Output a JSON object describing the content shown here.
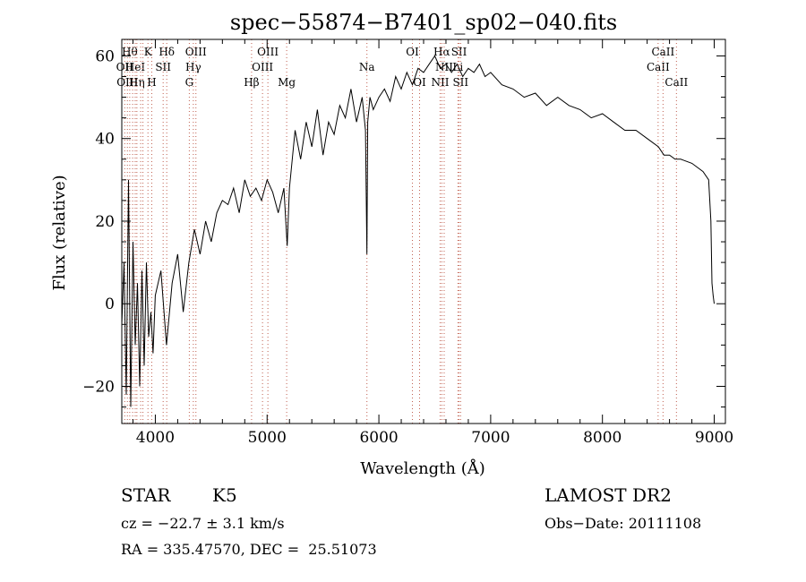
{
  "chart_data": {
    "type": "line",
    "title": "spec−55874−B7401_sp02−040.fits",
    "xlabel": "Wavelength (Å)",
    "ylabel": "Flux (relative)",
    "xlim": [
      3700,
      9100
    ],
    "ylim": [
      -29,
      64
    ],
    "xticks": [
      4000,
      5000,
      6000,
      7000,
      8000,
      9000
    ],
    "yticks": [
      -20,
      0,
      20,
      40,
      60
    ],
    "xtick_labels": [
      "4000",
      "5000",
      "6000",
      "7000",
      "8000",
      "9000"
    ],
    "ytick_labels": [
      "−20",
      "0",
      "20",
      "40",
      "60"
    ],
    "grid": false,
    "series": [
      {
        "x": [
          3700,
          3720,
          3740,
          3760,
          3780,
          3800,
          3820,
          3840,
          3860,
          3880,
          3900,
          3920,
          3940,
          3960,
          3980,
          4000,
          4050,
          4100,
          4150,
          4200,
          4250,
          4300,
          4350,
          4400,
          4450,
          4500,
          4550,
          4600,
          4650,
          4700,
          4750,
          4800,
          4850,
          4900,
          4950,
          5000,
          5050,
          5100,
          5150,
          5180,
          5200,
          5250,
          5300,
          5350,
          5400,
          5450,
          5500,
          5550,
          5600,
          5650,
          5700,
          5750,
          5800,
          5850,
          5880,
          5893,
          5900,
          5920,
          5950,
          6000,
          6050,
          6100,
          6150,
          6200,
          6250,
          6300,
          6350,
          6400,
          6450,
          6500,
          6550,
          6600,
          6650,
          6700,
          6750,
          6800,
          6850,
          6900,
          6950,
          7000,
          7100,
          7200,
          7300,
          7400,
          7500,
          7600,
          7700,
          7800,
          7900,
          8000,
          8100,
          8200,
          8300,
          8400,
          8500,
          8550,
          8600,
          8650,
          8700,
          8800,
          8900,
          8950,
          8970,
          8980,
          8990,
          9000
        ],
        "y": [
          -5,
          10,
          -22,
          30,
          -25,
          15,
          -10,
          5,
          -20,
          8,
          -15,
          10,
          -8,
          -2,
          -12,
          2,
          8,
          -10,
          5,
          12,
          -2,
          10,
          18,
          12,
          20,
          15,
          22,
          25,
          24,
          28,
          22,
          30,
          26,
          28,
          25,
          30,
          27,
          22,
          28,
          14,
          28,
          42,
          35,
          44,
          38,
          47,
          36,
          44,
          41,
          48,
          45,
          52,
          44,
          50,
          42,
          12,
          44,
          50,
          47,
          50,
          52,
          49,
          55,
          52,
          56,
          53,
          57,
          56,
          58,
          60,
          57,
          58,
          56,
          58,
          55,
          57,
          56,
          58,
          55,
          56,
          53,
          52,
          50,
          51,
          48,
          50,
          48,
          47,
          45,
          46,
          44,
          42,
          42,
          40,
          38,
          36,
          36,
          35,
          35,
          34,
          32,
          30,
          20,
          5,
          2,
          0
        ]
      }
    ],
    "line_markers": [
      {
        "wavelength": 3726,
        "label": "OII",
        "row": 1
      },
      {
        "wavelength": 3750,
        "label": "OIII",
        "row": 2
      },
      {
        "wavelength": 3771,
        "label": "Hθ",
        "row": 0
      },
      {
        "wavelength": 3797,
        "label": "",
        "row": -1
      },
      {
        "wavelength": 3820,
        "label": "HeI",
        "row": 1
      },
      {
        "wavelength": 3835,
        "label": "Hη",
        "row": 2
      },
      {
        "wavelength": 3869,
        "label": "",
        "row": -1
      },
      {
        "wavelength": 3889,
        "label": "",
        "row": -1
      },
      {
        "wavelength": 3934,
        "label": "K",
        "row": 0
      },
      {
        "wavelength": 3968,
        "label": "H",
        "row": 2
      },
      {
        "wavelength": 4070,
        "label": "SII",
        "row": 1
      },
      {
        "wavelength": 4102,
        "label": "Hδ",
        "row": 0
      },
      {
        "wavelength": 4304,
        "label": "G",
        "row": 2
      },
      {
        "wavelength": 4340,
        "label": "Hγ",
        "row": 1
      },
      {
        "wavelength": 4363,
        "label": "OIII",
        "row": 0
      },
      {
        "wavelength": 4861,
        "label": "Hβ",
        "row": 2
      },
      {
        "wavelength": 4959,
        "label": "OIII",
        "row": 1
      },
      {
        "wavelength": 5007,
        "label": "OIII",
        "row": 0
      },
      {
        "wavelength": 5175,
        "label": "Mg",
        "row": 2
      },
      {
        "wavelength": 5893,
        "label": "Na",
        "row": 1
      },
      {
        "wavelength": 6300,
        "label": "OI",
        "row": 0
      },
      {
        "wavelength": 6364,
        "label": "OI",
        "row": 2
      },
      {
        "wavelength": 6548,
        "label": "NII",
        "row": 2
      },
      {
        "wavelength": 6563,
        "label": "Hα",
        "row": 0
      },
      {
        "wavelength": 6584,
        "label": "NII",
        "row": 1
      },
      {
        "wavelength": 6707,
        "label": "Li",
        "row": 1
      },
      {
        "wavelength": 6717,
        "label": "SII",
        "row": 0
      },
      {
        "wavelength": 6731,
        "label": "SII",
        "row": 2
      },
      {
        "wavelength": 8498,
        "label": "CaII",
        "row": 1
      },
      {
        "wavelength": 8542,
        "label": "CaII",
        "row": 0
      },
      {
        "wavelength": 8662,
        "label": "CaII",
        "row": 2
      }
    ]
  },
  "info": {
    "class": "STAR",
    "subclass": "K5",
    "survey": "LAMOST DR2",
    "cz": "cz = −22.7 ± 3.1 km/s",
    "obs_date": "Obs−Date: 20111108",
    "radec": "RA = 335.47570, DEC =  25.51073"
  }
}
